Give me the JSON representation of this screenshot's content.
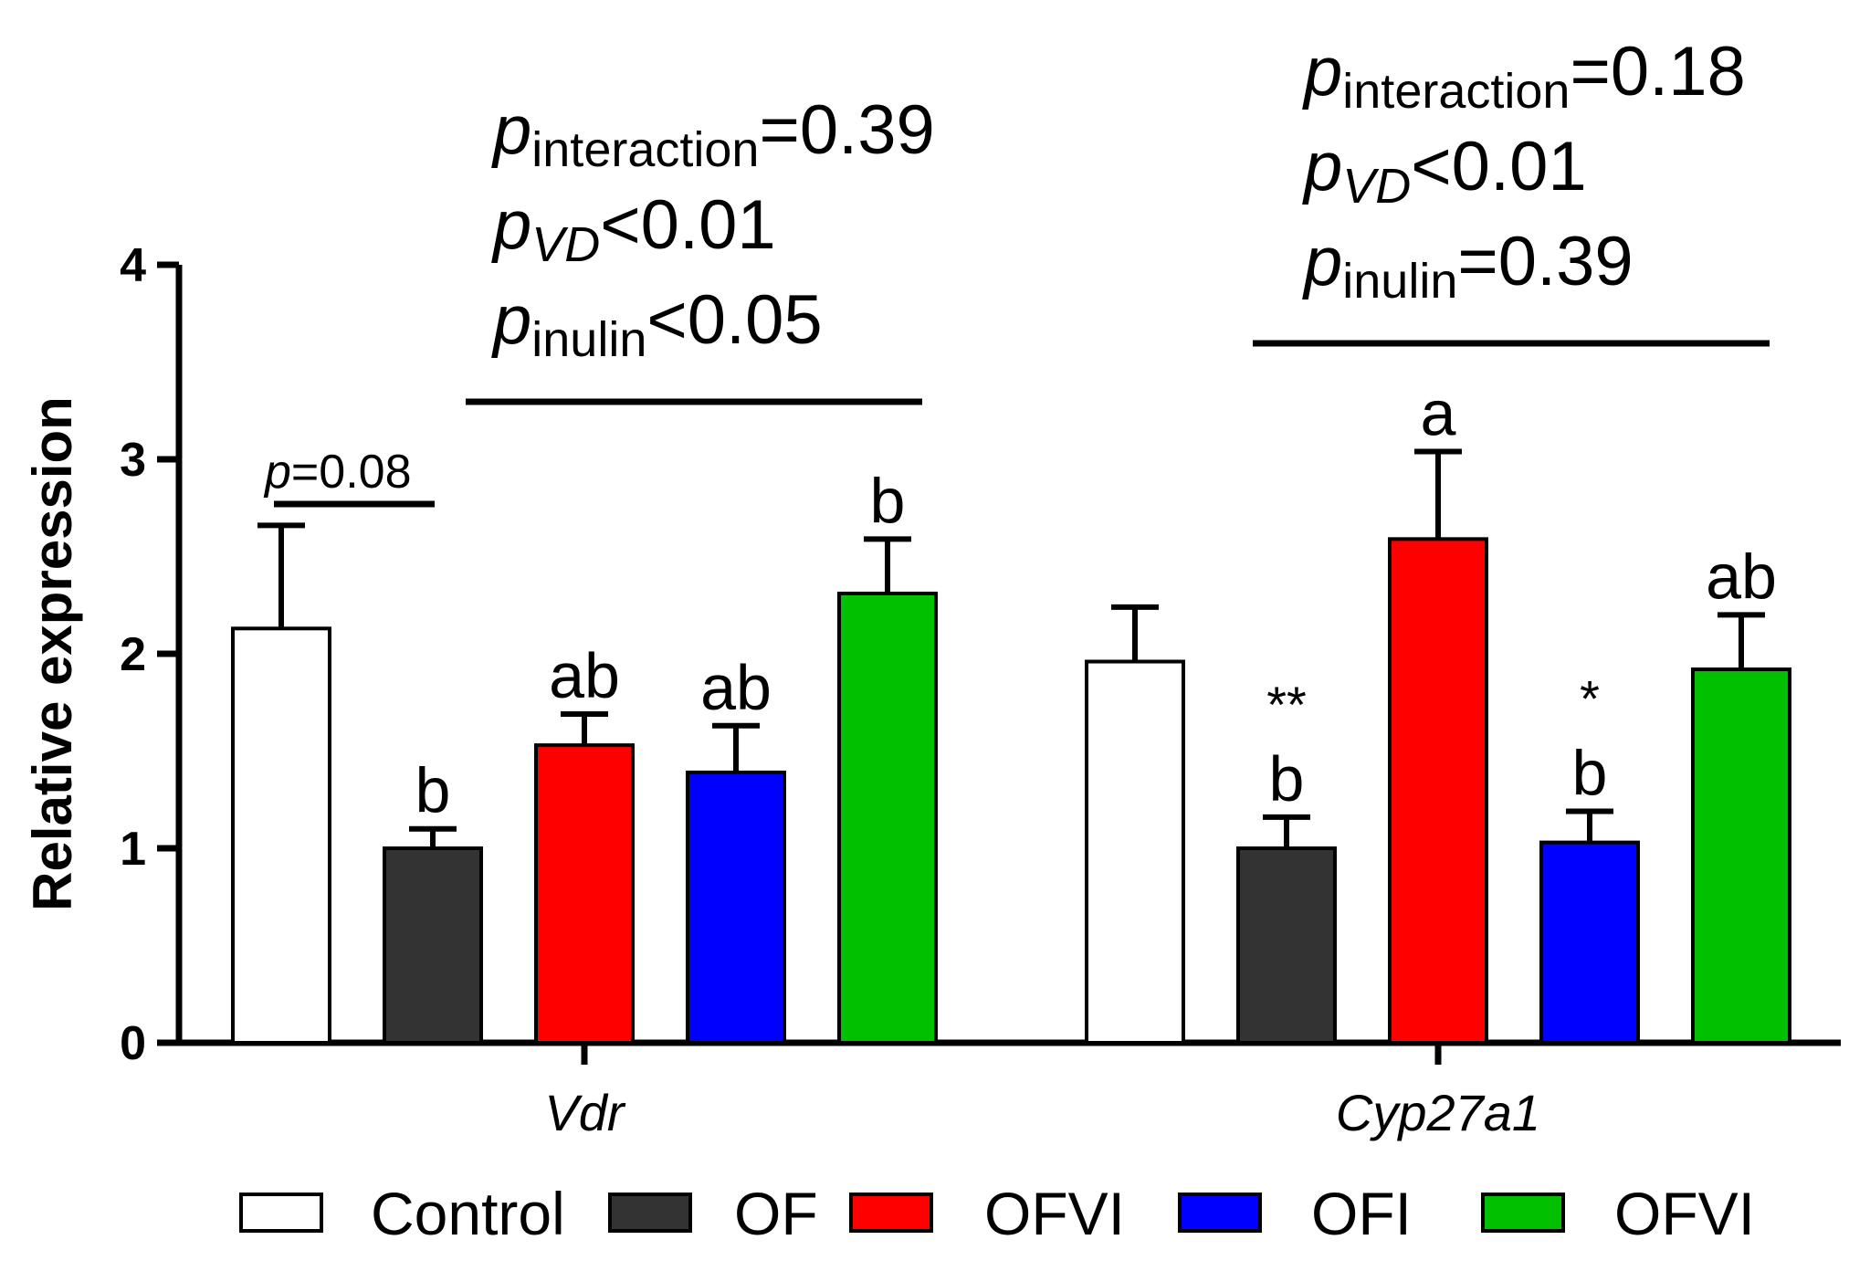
{
  "chart_data": {
    "type": "bar",
    "title": "",
    "xlabel": "",
    "ylabel": "Relative expression",
    "ylim": [
      0,
      4
    ],
    "yticks": [
      "0",
      "1",
      "2",
      "3",
      "4"
    ],
    "grid": false,
    "categories": [
      "Vdr",
      "Cyp27a1"
    ],
    "series": [
      {
        "name": "Control",
        "color": "#ffffff",
        "values": [
          2.13,
          1.96
        ],
        "errors": [
          0.53,
          0.28
        ],
        "labels": [
          "",
          ""
        ],
        "stars": [
          "",
          ""
        ]
      },
      {
        "name": "OF",
        "color": "#333333",
        "values": [
          1.0,
          1.0
        ],
        "errors": [
          0.1,
          0.16
        ],
        "labels": [
          "b",
          "b"
        ],
        "stars": [
          "",
          "**"
        ]
      },
      {
        "name": "OFVI",
        "color": "#ff0000",
        "values": [
          1.53,
          2.59
        ],
        "errors": [
          0.16,
          0.45
        ],
        "labels": [
          "ab",
          "a"
        ],
        "stars": [
          "",
          ""
        ]
      },
      {
        "name": "OFI",
        "color": "#0000ff",
        "values": [
          1.39,
          1.03
        ],
        "errors": [
          0.24,
          0.16
        ],
        "labels": [
          "ab",
          "b"
        ],
        "stars": [
          "",
          "*"
        ]
      },
      {
        "name": "OFVI",
        "color": "#00c000",
        "values": [
          2.31,
          1.92
        ],
        "errors": [
          0.28,
          0.28
        ],
        "labels": [
          "b",
          "ab"
        ],
        "stars": [
          "",
          ""
        ]
      }
    ],
    "annotations": {
      "vdr_pair": {
        "p": "p",
        "text": "=0.08"
      },
      "vdr_stats": [
        {
          "p": "p",
          "sub": "interaction",
          "sub_italic": false,
          "rest": "=0.39"
        },
        {
          "p": "p",
          "sub": "VD",
          "sub_italic": true,
          "rest": "<0.01"
        },
        {
          "p": "p",
          "sub": "inulin",
          "sub_italic": false,
          "rest": "<0.05"
        }
      ],
      "cyp_stats": [
        {
          "p": "p",
          "sub": "interaction",
          "sub_italic": false,
          "rest": "=0.18"
        },
        {
          "p": "p",
          "sub": "VD",
          "sub_italic": true,
          "rest": "<0.01"
        },
        {
          "p": "p",
          "sub": "inulin",
          "sub_italic": false,
          "rest": "=0.39"
        }
      ]
    },
    "legend_position": "bottom"
  }
}
